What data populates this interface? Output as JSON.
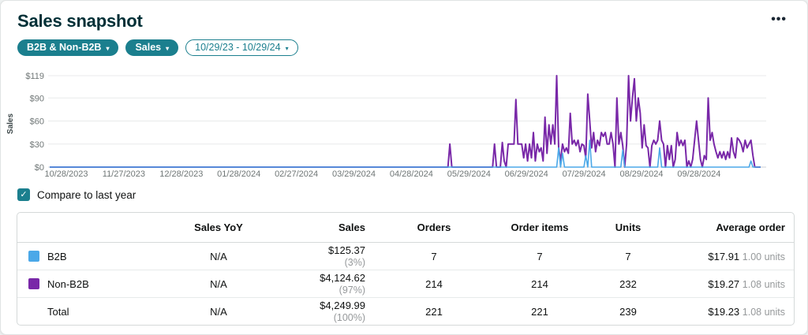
{
  "header": {
    "title": "Sales snapshot"
  },
  "icons": {
    "ellipsis": "•••",
    "caret_down": "▾",
    "check": "✓"
  },
  "filters": {
    "account_type": {
      "label": "B2B & Non-B2B"
    },
    "metric": {
      "label": "Sales"
    },
    "date_range": {
      "label": "10/29/23 - 10/29/24"
    }
  },
  "compare": {
    "label": "Compare to last year",
    "checked": true
  },
  "colors": {
    "accent_teal": "#1b7f8e",
    "b2b_blue": "#4ba8e8",
    "non_b2b_purple": "#7928a8",
    "gridline": "#e8eaeb",
    "tick_text": "#6f7676"
  },
  "chart_data": {
    "type": "line",
    "title": "",
    "ylabel": "Sales",
    "ylim": [
      0,
      119
    ],
    "y_ticks": [
      "$0",
      "$30",
      "$60",
      "$90",
      "$119"
    ],
    "y_tick_values": [
      0,
      30,
      60,
      90,
      119
    ],
    "x_tick_labels": [
      "10/28/2023",
      "11/27/2023",
      "12/28/2023",
      "01/28/2024",
      "02/27/2024",
      "03/29/2024",
      "04/28/2024",
      "05/29/2024",
      "06/29/2024",
      "07/29/2024",
      "08/29/2024",
      "09/28/2024"
    ],
    "x_start": "10/28/2023",
    "x_end": "10/28/2024",
    "x_range_days": 366,
    "grid": true,
    "legend_position": "table-below",
    "series": [
      {
        "name": "B2B",
        "color": "#4ba8e8",
        "points": [
          [
            262,
            25
          ],
          [
            264,
            18
          ],
          [
            276,
            15
          ],
          [
            278,
            35
          ],
          [
            295,
            22
          ],
          [
            314,
            25
          ],
          [
            361,
            8
          ]
        ]
      },
      {
        "name": "Non-B2B",
        "color": "#7928a8",
        "points": [
          [
            206,
            30
          ],
          [
            229,
            30
          ],
          [
            233,
            32
          ],
          [
            234,
            8
          ],
          [
            236,
            30
          ],
          [
            237,
            30
          ],
          [
            238,
            30
          ],
          [
            239,
            30
          ],
          [
            240,
            88
          ],
          [
            241,
            30
          ],
          [
            242,
            30
          ],
          [
            243,
            30
          ],
          [
            244,
            12
          ],
          [
            245,
            30
          ],
          [
            246,
            8
          ],
          [
            247,
            30
          ],
          [
            248,
            12
          ],
          [
            249,
            45
          ],
          [
            250,
            8
          ],
          [
            251,
            30
          ],
          [
            252,
            20
          ],
          [
            253,
            25
          ],
          [
            254,
            8
          ],
          [
            255,
            65
          ],
          [
            256,
            18
          ],
          [
            257,
            55
          ],
          [
            258,
            30
          ],
          [
            259,
            55
          ],
          [
            260,
            30
          ],
          [
            261,
            119
          ],
          [
            262,
            25
          ],
          [
            263,
            8
          ],
          [
            264,
            30
          ],
          [
            265,
            20
          ],
          [
            266,
            25
          ],
          [
            267,
            18
          ],
          [
            268,
            70
          ],
          [
            269,
            30
          ],
          [
            270,
            35
          ],
          [
            271,
            28
          ],
          [
            272,
            35
          ],
          [
            273,
            20
          ],
          [
            274,
            30
          ],
          [
            275,
            28
          ],
          [
            276,
            12
          ],
          [
            277,
            95
          ],
          [
            278,
            60
          ],
          [
            279,
            25
          ],
          [
            280,
            45
          ],
          [
            281,
            20
          ],
          [
            282,
            35
          ],
          [
            283,
            28
          ],
          [
            284,
            45
          ],
          [
            285,
            40
          ],
          [
            286,
            45
          ],
          [
            287,
            30
          ],
          [
            288,
            30
          ],
          [
            289,
            45
          ],
          [
            290,
            30
          ],
          [
            291,
            0
          ],
          [
            292,
            90
          ],
          [
            293,
            30
          ],
          [
            294,
            45
          ],
          [
            295,
            28
          ],
          [
            296,
            0
          ],
          [
            297,
            30
          ],
          [
            298,
            119
          ],
          [
            299,
            60
          ],
          [
            300,
            90
          ],
          [
            301,
            115
          ],
          [
            302,
            60
          ],
          [
            303,
            90
          ],
          [
            304,
            70
          ],
          [
            305,
            25
          ],
          [
            306,
            55
          ],
          [
            307,
            28
          ],
          [
            308,
            25
          ],
          [
            309,
            0
          ],
          [
            310,
            28
          ],
          [
            311,
            35
          ],
          [
            312,
            30
          ],
          [
            313,
            35
          ],
          [
            314,
            60
          ],
          [
            315,
            35
          ],
          [
            316,
            30
          ],
          [
            317,
            0
          ],
          [
            318,
            28
          ],
          [
            319,
            10
          ],
          [
            320,
            28
          ],
          [
            321,
            0
          ],
          [
            322,
            10
          ],
          [
            323,
            45
          ],
          [
            324,
            28
          ],
          [
            325,
            35
          ],
          [
            326,
            28
          ],
          [
            327,
            35
          ],
          [
            328,
            0
          ],
          [
            329,
            8
          ],
          [
            330,
            0
          ],
          [
            331,
            10
          ],
          [
            332,
            35
          ],
          [
            333,
            60
          ],
          [
            334,
            35
          ],
          [
            335,
            10
          ],
          [
            336,
            0
          ],
          [
            337,
            15
          ],
          [
            338,
            10
          ],
          [
            339,
            90
          ],
          [
            340,
            35
          ],
          [
            341,
            45
          ],
          [
            342,
            30
          ],
          [
            343,
            20
          ],
          [
            344,
            12
          ],
          [
            345,
            20
          ],
          [
            346,
            12
          ],
          [
            347,
            20
          ],
          [
            348,
            10
          ],
          [
            349,
            20
          ],
          [
            350,
            12
          ],
          [
            351,
            38
          ],
          [
            352,
            20
          ],
          [
            353,
            12
          ],
          [
            354,
            38
          ],
          [
            355,
            35
          ],
          [
            356,
            30
          ],
          [
            357,
            20
          ],
          [
            358,
            35
          ],
          [
            359,
            25
          ],
          [
            360,
            30
          ],
          [
            361,
            35
          ],
          [
            362,
            15
          ],
          [
            363,
            0
          ]
        ]
      }
    ]
  },
  "table": {
    "headers": [
      "",
      "Sales YoY",
      "Sales",
      "Orders",
      "Order items",
      "Units",
      "Average order"
    ],
    "rows": [
      {
        "name": "B2B",
        "swatch": "#4ba8e8",
        "yoy": "N/A",
        "sales": "$125.37",
        "sales_pct": "(3%)",
        "orders": "7",
        "order_items": "7",
        "units": "7",
        "avg_order": "$17.91",
        "avg_units": "1.00 units"
      },
      {
        "name": "Non-B2B",
        "swatch": "#7928a8",
        "yoy": "N/A",
        "sales": "$4,124.62",
        "sales_pct": "(97%)",
        "orders": "214",
        "order_items": "214",
        "units": "232",
        "avg_order": "$19.27",
        "avg_units": "1.08 units"
      },
      {
        "name": "Total",
        "swatch": null,
        "yoy": "N/A",
        "sales": "$4,249.99",
        "sales_pct": "(100%)",
        "orders": "221",
        "order_items": "221",
        "units": "239",
        "avg_order": "$19.23",
        "avg_units": "1.08 units"
      }
    ]
  }
}
